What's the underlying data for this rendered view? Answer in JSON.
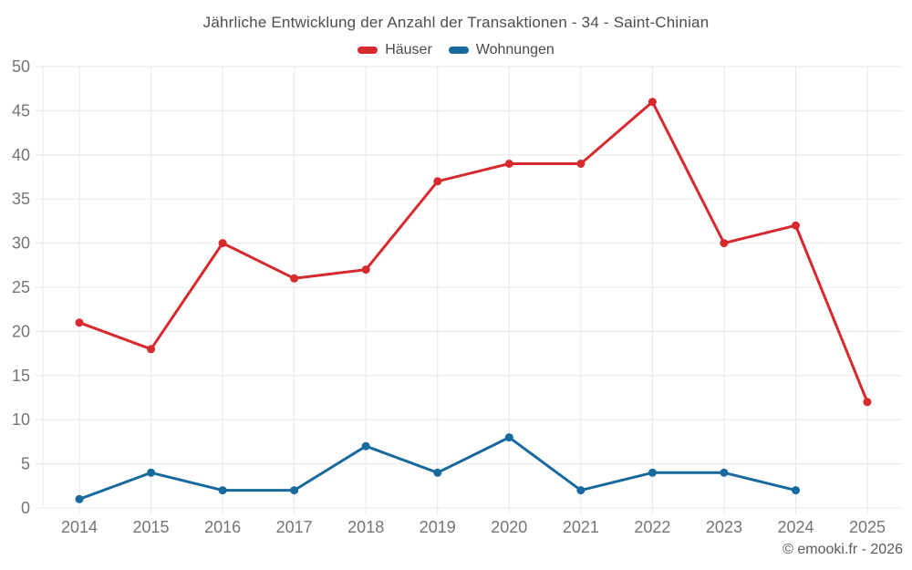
{
  "chart": {
    "title": "Jährliche Entwicklung der Anzahl der Transaktionen - 34 - Saint-Chinian"
  },
  "chart_data": {
    "type": "line",
    "categories": [
      "2014",
      "2015",
      "2016",
      "2017",
      "2018",
      "2019",
      "2020",
      "2021",
      "2022",
      "2023",
      "2024",
      "2025"
    ],
    "series": [
      {
        "name": "Häuser",
        "color": "#d62a2e",
        "values": [
          21,
          18,
          30,
          26,
          27,
          37,
          39,
          39,
          46,
          30,
          32,
          12
        ]
      },
      {
        "name": "Wohnungen",
        "color": "#17699e",
        "values": [
          1,
          4,
          2,
          2,
          7,
          4,
          8,
          2,
          4,
          4,
          2,
          null
        ]
      }
    ],
    "title": "Jährliche Entwicklung der Anzahl der Transaktionen - 34 - Saint-Chinian",
    "xlabel": "",
    "ylabel": "",
    "ylim": [
      0,
      50
    ],
    "y_ticks": [
      0,
      5,
      10,
      15,
      20,
      25,
      30,
      35,
      40,
      45,
      50
    ],
    "grid": true,
    "legend_position": "top",
    "colors": {
      "gridline": "#e8e8e8",
      "axis_text": "#757575",
      "title_text": "#4d4d4d",
      "legend_text": "#4a4a4a",
      "footer_text": "#5a5a5a"
    }
  },
  "footer": {
    "copyright": "© emooki.fr - 2026"
  }
}
